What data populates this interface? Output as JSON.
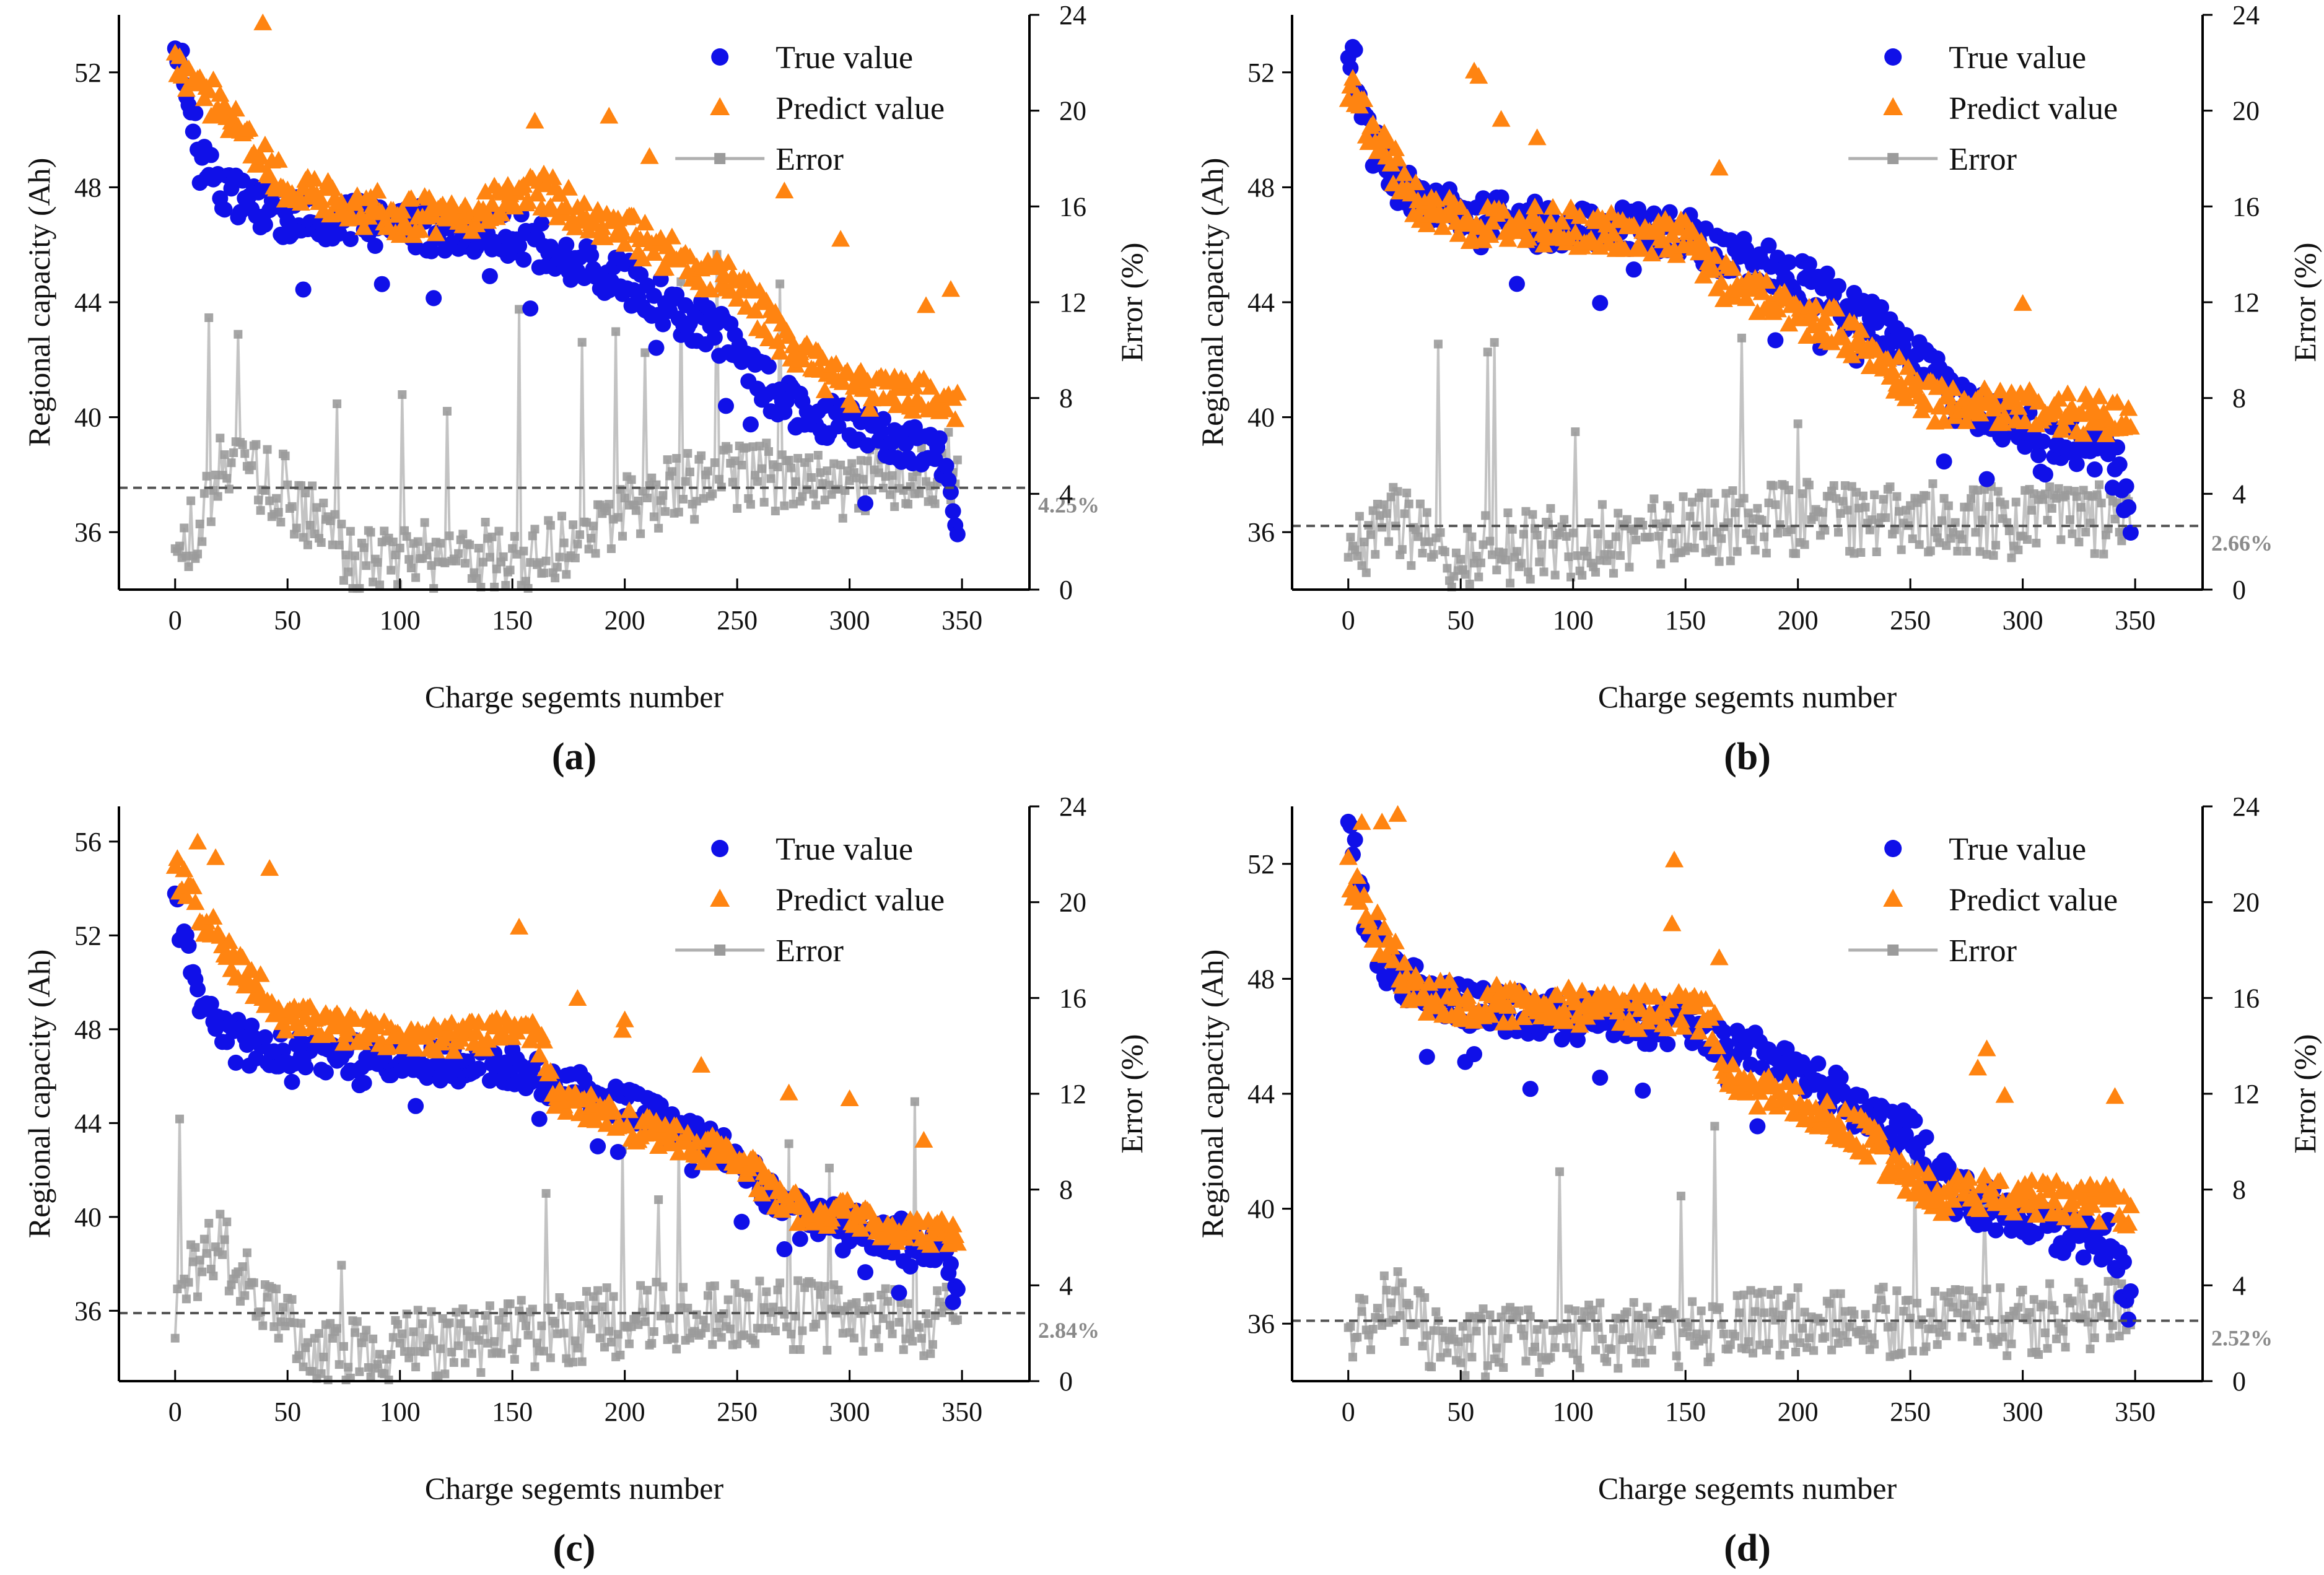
{
  "figure": {
    "x_axis_label": "Charge segemts number",
    "y_left_label": "Regional capacity (Ah)",
    "y_right_label": "Error (%)",
    "legend": [
      "True value",
      "Predict value",
      "Error"
    ]
  },
  "colors": {
    "true": "#1010e8",
    "predict": "#ff8411",
    "error": "#9b9b9b",
    "mean_line": "#555555",
    "axis": "#000000"
  },
  "chart_data": [
    {
      "panel": "(a)",
      "type": "scatter",
      "xlabel": "Charge segemts number",
      "ylabel": "Regional capacity (Ah)",
      "y2label": "Error (%)",
      "xlim": [
        -25,
        380
      ],
      "x_ticks": [
        0,
        50,
        100,
        150,
        200,
        250,
        300,
        350
      ],
      "ylim": [
        34,
        54
      ],
      "y_ticks": [
        36,
        40,
        44,
        48,
        52
      ],
      "y2lim": [
        0,
        24
      ],
      "y2_ticks": [
        0,
        4,
        8,
        12,
        16,
        20,
        24
      ],
      "mean_error_label": "4.25%",
      "mean_error": 4.25,
      "true_profile": [
        [
          0,
          53.3
        ],
        [
          8,
          50
        ],
        [
          20,
          48
        ],
        [
          50,
          47
        ],
        [
          100,
          46.6
        ],
        [
          150,
          46.4
        ],
        [
          170,
          45.7
        ],
        [
          200,
          44.8
        ],
        [
          250,
          42.5
        ],
        [
          270,
          40.5
        ],
        [
          300,
          39.6
        ],
        [
          340,
          38.8
        ],
        [
          350,
          36
        ]
      ],
      "predict_profile": [
        [
          0,
          52.3
        ],
        [
          10,
          51.6
        ],
        [
          30,
          50
        ],
        [
          50,
          47.8
        ],
        [
          100,
          47
        ],
        [
          130,
          47
        ],
        [
          160,
          47.9
        ],
        [
          200,
          46.5
        ],
        [
          250,
          44.5
        ],
        [
          280,
          42
        ],
        [
          300,
          41
        ],
        [
          350,
          40.5
        ]
      ],
      "error_profile": [
        [
          0,
          0.8
        ],
        [
          20,
          5
        ],
        [
          45,
          4.5
        ],
        [
          80,
          1.2
        ],
        [
          170,
          1.5
        ],
        [
          200,
          3.5
        ],
        [
          250,
          4.8
        ],
        [
          300,
          4.4
        ],
        [
          350,
          5.2
        ]
      ]
    },
    {
      "panel": "(b)",
      "type": "scatter",
      "xlabel": "Charge segemts number",
      "ylabel": "Regional capacity (Ah)",
      "y2label": "Error (%)",
      "xlim": [
        -25,
        380
      ],
      "x_ticks": [
        0,
        50,
        100,
        150,
        200,
        250,
        300,
        350
      ],
      "ylim": [
        34,
        54
      ],
      "y_ticks": [
        36,
        40,
        44,
        48,
        52
      ],
      "y2lim": [
        0,
        24
      ],
      "y2_ticks": [
        0,
        4,
        8,
        12,
        16,
        20,
        24
      ],
      "mean_error_label": "2.66%",
      "mean_error": 2.66,
      "true_profile": [
        [
          0,
          53.3
        ],
        [
          8,
          50
        ],
        [
          20,
          48
        ],
        [
          50,
          47
        ],
        [
          100,
          46.6
        ],
        [
          150,
          46.4
        ],
        [
          170,
          45.7
        ],
        [
          200,
          44.8
        ],
        [
          250,
          42.5
        ],
        [
          270,
          40.5
        ],
        [
          300,
          39.6
        ],
        [
          340,
          38.8
        ],
        [
          350,
          36
        ]
      ],
      "predict_profile": [
        [
          0,
          51.5
        ],
        [
          10,
          50
        ],
        [
          30,
          47.5
        ],
        [
          50,
          46.8
        ],
        [
          100,
          46.6
        ],
        [
          150,
          46.2
        ],
        [
          170,
          44.5
        ],
        [
          220,
          43
        ],
        [
          260,
          40.5
        ],
        [
          300,
          40.4
        ],
        [
          350,
          39.8
        ]
      ],
      "error_profile": [
        [
          0,
          1.5
        ],
        [
          20,
          3
        ],
        [
          40,
          1.5
        ],
        [
          100,
          2
        ],
        [
          150,
          2.5
        ],
        [
          200,
          3
        ],
        [
          250,
          3
        ],
        [
          300,
          2.8
        ],
        [
          350,
          3
        ]
      ]
    },
    {
      "panel": "(c)",
      "type": "scatter",
      "xlabel": "Charge segemts number",
      "ylabel": "Regional capacity (Ah)",
      "y2label": "Error (%)",
      "xlim": [
        -25,
        380
      ],
      "x_ticks": [
        0,
        50,
        100,
        150,
        200,
        250,
        300,
        350
      ],
      "ylim": [
        33,
        57.5
      ],
      "y_ticks": [
        36,
        40,
        44,
        48,
        52,
        56
      ],
      "y2lim": [
        0,
        24
      ],
      "y2_ticks": [
        0,
        4,
        8,
        12,
        16,
        20,
        24
      ],
      "mean_error_label": "2.84%",
      "mean_error": 2.84,
      "true_profile": [
        [
          0,
          53.3
        ],
        [
          8,
          50
        ],
        [
          20,
          48
        ],
        [
          50,
          47
        ],
        [
          100,
          46.6
        ],
        [
          150,
          46.4
        ],
        [
          170,
          45.7
        ],
        [
          200,
          44.8
        ],
        [
          250,
          42.5
        ],
        [
          270,
          40.5
        ],
        [
          300,
          39.6
        ],
        [
          340,
          38.8
        ],
        [
          350,
          36
        ]
      ],
      "predict_profile": [
        [
          0,
          54.8
        ],
        [
          10,
          53
        ],
        [
          30,
          50.5
        ],
        [
          50,
          48.5
        ],
        [
          100,
          47.5
        ],
        [
          160,
          48
        ],
        [
          170,
          45
        ],
        [
          200,
          44
        ],
        [
          250,
          42.5
        ],
        [
          270,
          40.5
        ],
        [
          300,
          40
        ],
        [
          350,
          39
        ]
      ],
      "error_profile": [
        [
          0,
          3
        ],
        [
          15,
          6
        ],
        [
          40,
          3.5
        ],
        [
          70,
          1
        ],
        [
          150,
          2
        ],
        [
          200,
          2.5
        ],
        [
          250,
          3
        ],
        [
          300,
          2.5
        ],
        [
          350,
          2.5
        ]
      ]
    },
    {
      "panel": "(d)",
      "type": "scatter",
      "xlabel": "Charge segemts number",
      "ylabel": "Regional capacity (Ah)",
      "y2label": "Error (%)",
      "xlim": [
        -25,
        380
      ],
      "x_ticks": [
        0,
        50,
        100,
        150,
        200,
        250,
        300,
        350
      ],
      "ylim": [
        34,
        54
      ],
      "y_ticks": [
        36,
        40,
        44,
        48,
        52
      ],
      "y2lim": [
        0,
        24
      ],
      "y2_ticks": [
        0,
        4,
        8,
        12,
        16,
        20,
        24
      ],
      "mean_error_label": "2.52%",
      "mean_error": 2.52,
      "true_profile": [
        [
          0,
          53.3
        ],
        [
          8,
          50
        ],
        [
          20,
          48
        ],
        [
          50,
          47
        ],
        [
          100,
          46.6
        ],
        [
          150,
          46.4
        ],
        [
          170,
          45.7
        ],
        [
          200,
          44.8
        ],
        [
          250,
          42.5
        ],
        [
          270,
          40.5
        ],
        [
          300,
          39.6
        ],
        [
          340,
          38.8
        ],
        [
          350,
          36
        ]
      ],
      "predict_profile": [
        [
          0,
          51.5
        ],
        [
          10,
          50
        ],
        [
          30,
          47.5
        ],
        [
          50,
          47.2
        ],
        [
          100,
          47
        ],
        [
          160,
          46.8
        ],
        [
          170,
          44.5
        ],
        [
          220,
          43
        ],
        [
          260,
          40.5
        ],
        [
          300,
          40.5
        ],
        [
          350,
          40
        ]
      ],
      "error_profile": [
        [
          0,
          1.5
        ],
        [
          20,
          3.5
        ],
        [
          40,
          1.5
        ],
        [
          100,
          1.8
        ],
        [
          150,
          2
        ],
        [
          200,
          2.5
        ],
        [
          250,
          2.5
        ],
        [
          300,
          2.5
        ],
        [
          350,
          3
        ]
      ]
    }
  ]
}
